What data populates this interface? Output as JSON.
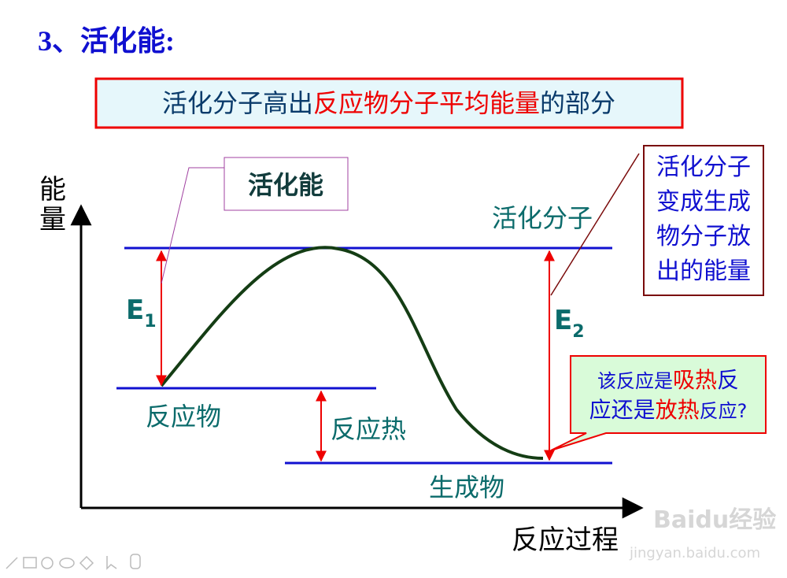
{
  "title": "3、活化能:",
  "definition": {
    "parts": [
      "活化分子高出",
      "反应物分子平均能量",
      "的部分"
    ]
  },
  "axes": {
    "y_label": "能量",
    "x_label": "反应过程"
  },
  "labels": {
    "activation_energy": "活化能",
    "activated_molecules": "活化分子",
    "reactants": "反应物",
    "reaction_heat": "反应热",
    "products": "生成物",
    "e1": {
      "letter": "E",
      "sub": "1"
    },
    "e2": {
      "letter": "E",
      "sub": "2"
    }
  },
  "released_callout": {
    "lines": [
      "活化分子",
      "变成生成",
      "物分子放",
      "出的能量"
    ]
  },
  "question_callout": {
    "line1": [
      "该反应是",
      "吸热",
      "反"
    ],
    "line2": [
      "应还是",
      "放热",
      "反应?"
    ]
  },
  "watermark": {
    "brand": "Baidu经验",
    "url": "jingyan.baidu.com"
  }
}
